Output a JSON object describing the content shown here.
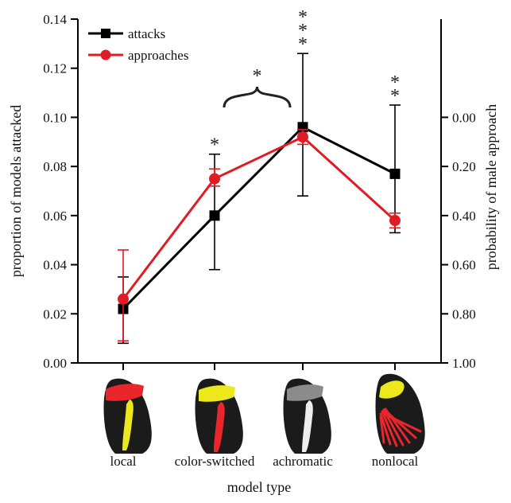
{
  "chart_data": {
    "type": "line",
    "categories": [
      "local",
      "color-switched",
      "achromatic",
      "nonlocal"
    ],
    "xlabel": "model type",
    "ylabel": "proportion of models attacked",
    "y2label": "probability of male approach",
    "ylim": [
      0,
      0.14
    ],
    "y_ticks": [
      "0.00",
      "0.02",
      "0.04",
      "0.06",
      "0.08",
      "0.10",
      "0.12",
      "0.14"
    ],
    "y2_range": [
      0,
      1
    ],
    "y2_ticks": [
      "1.00",
      "0.80",
      "0.60",
      "0.40",
      "0.20",
      "0.00"
    ],
    "y2_inverted": true,
    "legend_position": "top-left",
    "series": [
      {
        "name": "attacks",
        "color": "#000000",
        "marker": "square",
        "axis": "left",
        "values": [
          0.022,
          0.06,
          0.096,
          0.077
        ],
        "err_low": [
          0.008,
          0.038,
          0.068,
          0.053
        ],
        "err_high": [
          0.035,
          0.085,
          0.126,
          0.105
        ]
      },
      {
        "name": "approaches",
        "color": "#e01b23",
        "marker": "circle",
        "axis": "right",
        "values": [
          0.74,
          0.25,
          0.08,
          0.42
        ],
        "err_low": [
          0.54,
          0.21,
          0.05,
          0.39
        ],
        "err_high": [
          0.91,
          0.28,
          0.11,
          0.45
        ]
      }
    ],
    "annotations": [
      {
        "category": "color-switched",
        "text": "*"
      },
      {
        "category": "achromatic",
        "text": "***"
      },
      {
        "category": "nonlocal",
        "text": "**"
      },
      {
        "between": [
          "color-switched",
          "achromatic"
        ],
        "text": "*"
      }
    ],
    "wing_colors": {
      "wing_body": "#1b1b1b",
      "local_band": "#e8262b",
      "local_stripe": "#ece81c",
      "color_switched_band": "#ece81c",
      "color_switched_stripe": "#e8262b",
      "achromatic_band": "#8b8b8b",
      "achromatic_stripe": "#eeeeee",
      "nonlocal_patch": "#ece81c",
      "nonlocal_rays": "#e8262b"
    }
  }
}
